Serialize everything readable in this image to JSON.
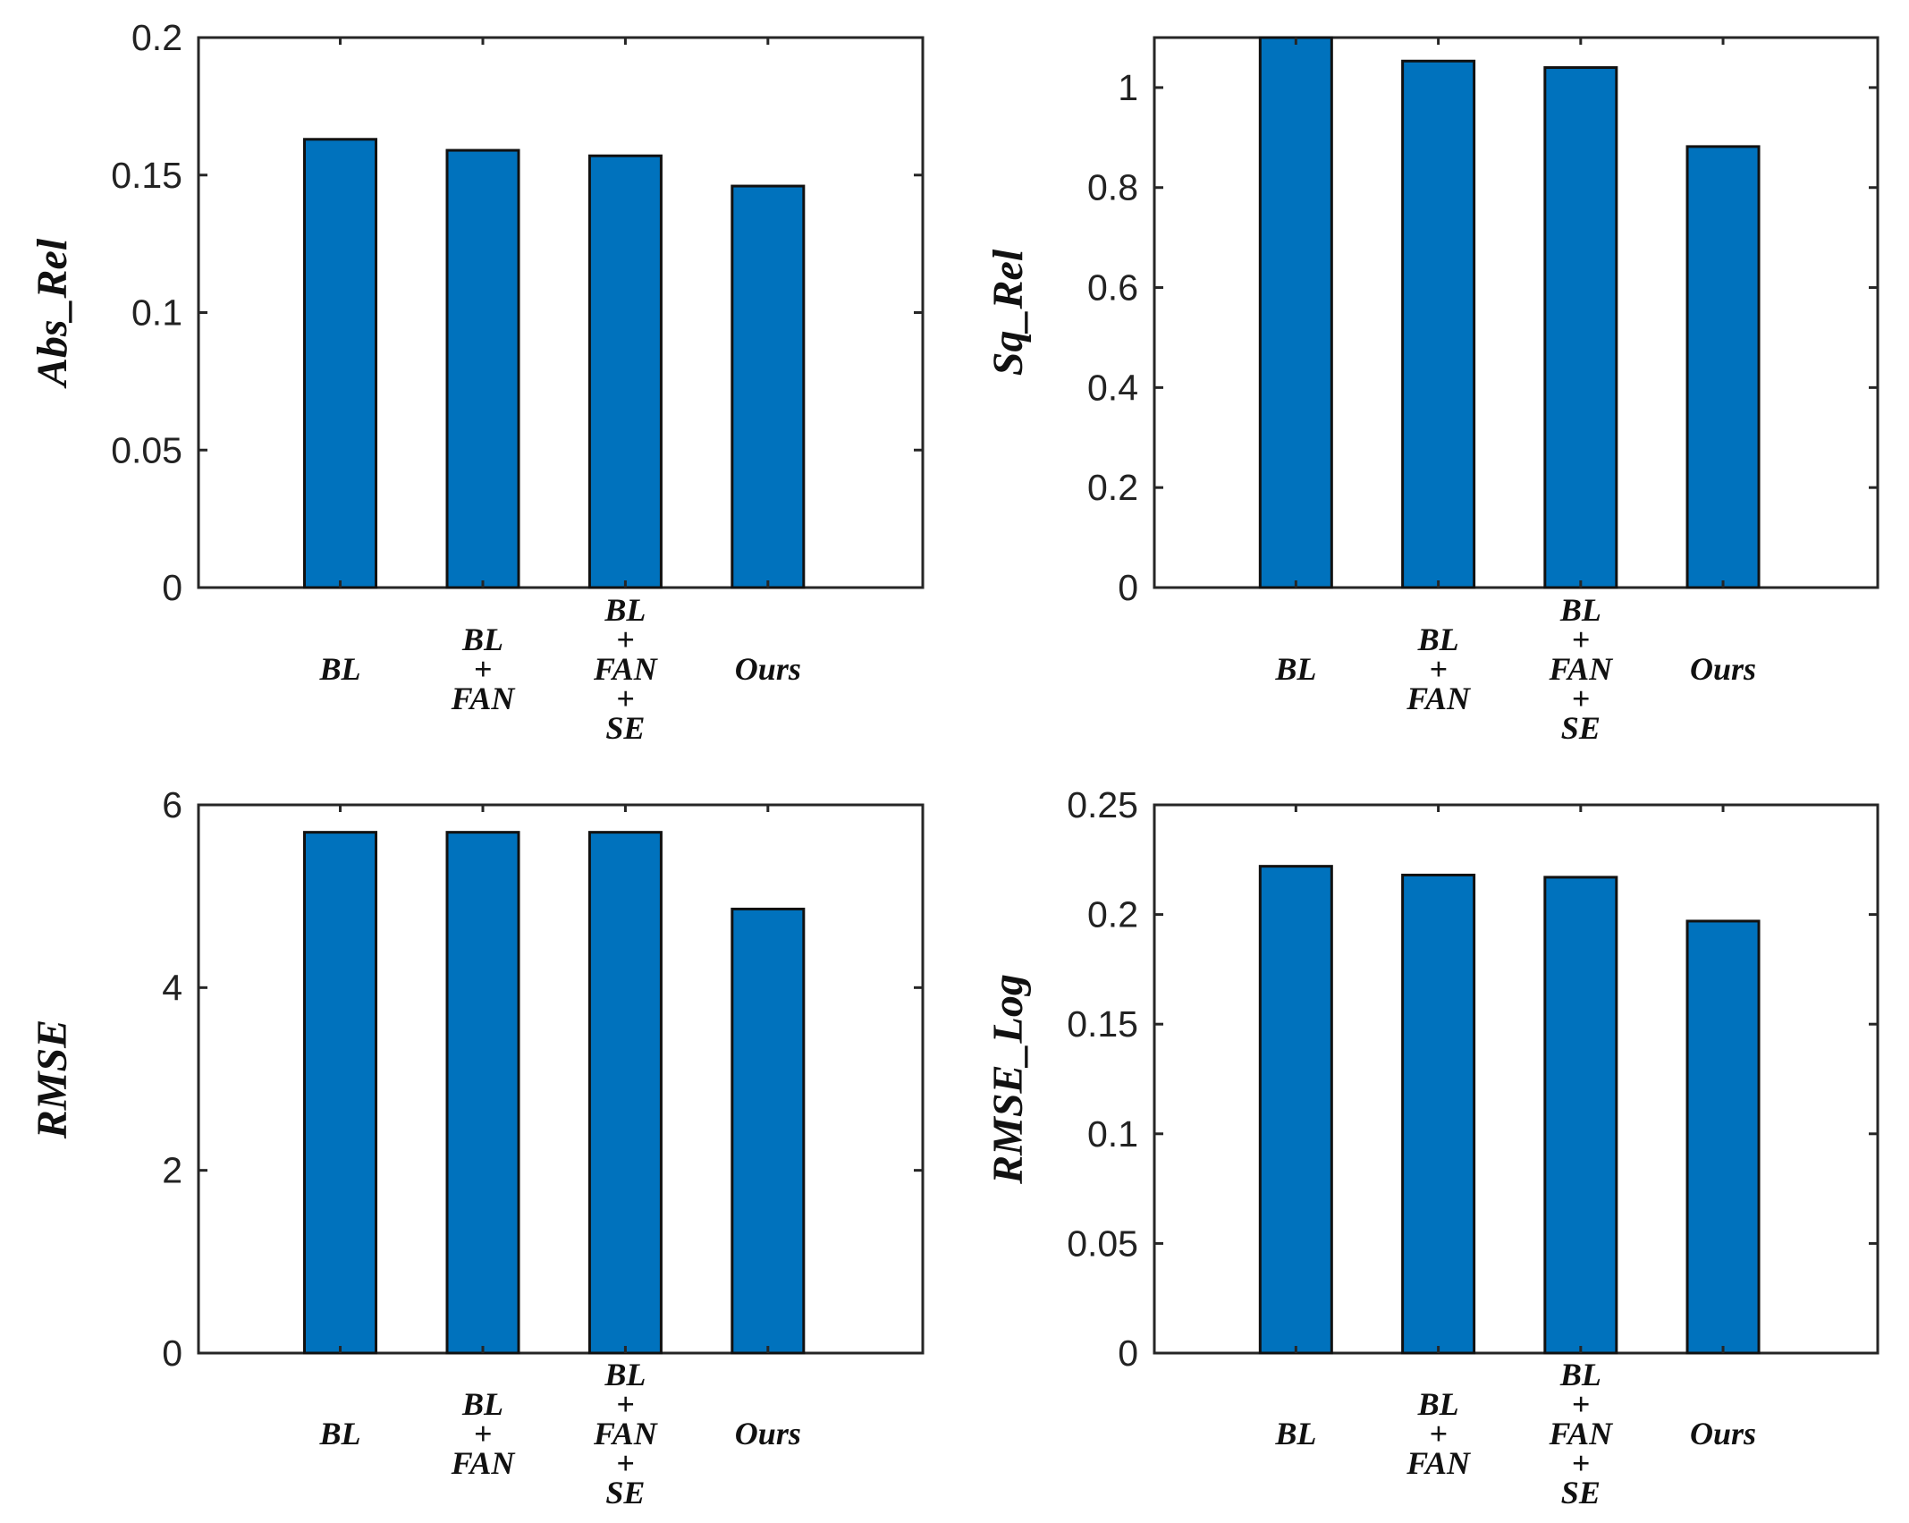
{
  "bar_color": "#0072BD",
  "edge_color": "#111111",
  "chart_data": [
    {
      "type": "bar",
      "ylabel": "Abs_Rel",
      "categories": [
        "BL",
        "BL\n+\nFAN",
        "BL\n+\nFAN\n+\nSE",
        "Ours"
      ],
      "values": [
        0.163,
        0.159,
        0.157,
        0.146
      ],
      "ylim": [
        0,
        0.2
      ],
      "yticks": [
        0,
        0.05,
        0.1,
        0.15,
        0.2
      ],
      "ytick_labels": [
        "0",
        "0.05",
        "0.1",
        "0.15",
        "0.2"
      ]
    },
    {
      "type": "bar",
      "ylabel": "Sq_Rel",
      "categories": [
        "BL",
        "BL\n+\nFAN",
        "BL\n+\nFAN\n+\nSE",
        "Ours"
      ],
      "values": [
        1.11,
        1.053,
        1.04,
        0.882
      ],
      "ylim": [
        0,
        1.1
      ],
      "yticks": [
        0,
        0.2,
        0.4,
        0.6,
        0.8,
        1
      ],
      "ytick_labels": [
        "0",
        "0.2",
        "0.4",
        "0.6",
        "0.8",
        "1"
      ]
    },
    {
      "type": "bar",
      "ylabel": "RMSE",
      "categories": [
        "BL",
        "BL\n+\nFAN",
        "BL\n+\nFAN\n+\nSE",
        "Ours"
      ],
      "values": [
        5.7,
        5.7,
        5.7,
        4.86
      ],
      "ylim": [
        0,
        6
      ],
      "yticks": [
        0,
        2,
        4,
        6
      ],
      "ytick_labels": [
        "0",
        "2",
        "4",
        "6"
      ]
    },
    {
      "type": "bar",
      "ylabel": "RMSE_Log",
      "categories": [
        "BL",
        "BL\n+\nFAN",
        "BL\n+\nFAN\n+\nSE",
        "Ours"
      ],
      "values": [
        0.222,
        0.218,
        0.217,
        0.197
      ],
      "ylim": [
        0,
        0.25
      ],
      "yticks": [
        0,
        0.05,
        0.1,
        0.15,
        0.2,
        0.25
      ],
      "ytick_labels": [
        "0",
        "0.05",
        "0.1",
        "0.15",
        "0.2",
        "0.25"
      ]
    }
  ]
}
